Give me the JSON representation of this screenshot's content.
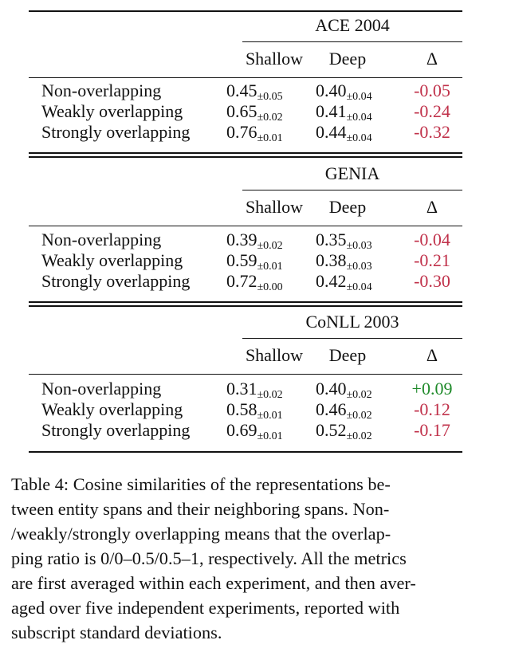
{
  "sections": [
    {
      "title": "ACE 2004",
      "columns": [
        "Shallow",
        "Deep",
        "Δ"
      ],
      "rows": [
        {
          "label": "Non-overlapping",
          "shallow": "0.45",
          "shallow_sd": "±0.05",
          "deep": "0.40",
          "deep_sd": "±0.04",
          "delta": "-0.05",
          "sign": "neg"
        },
        {
          "label": "Weakly overlapping",
          "shallow": "0.65",
          "shallow_sd": "±0.02",
          "deep": "0.41",
          "deep_sd": "±0.04",
          "delta": "-0.24",
          "sign": "neg"
        },
        {
          "label": "Strongly overlapping",
          "shallow": "0.76",
          "shallow_sd": "±0.01",
          "deep": "0.44",
          "deep_sd": "±0.04",
          "delta": "-0.32",
          "sign": "neg"
        }
      ]
    },
    {
      "title": "GENIA",
      "columns": [
        "Shallow",
        "Deep",
        "Δ"
      ],
      "rows": [
        {
          "label": "Non-overlapping",
          "shallow": "0.39",
          "shallow_sd": "±0.02",
          "deep": "0.35",
          "deep_sd": "±0.03",
          "delta": "-0.04",
          "sign": "neg"
        },
        {
          "label": "Weakly overlapping",
          "shallow": "0.59",
          "shallow_sd": "±0.01",
          "deep": "0.38",
          "deep_sd": "±0.03",
          "delta": "-0.21",
          "sign": "neg"
        },
        {
          "label": "Strongly overlapping",
          "shallow": "0.72",
          "shallow_sd": "±0.00",
          "deep": "0.42",
          "deep_sd": "±0.04",
          "delta": "-0.30",
          "sign": "neg"
        }
      ]
    },
    {
      "title": "CoNLL 2003",
      "columns": [
        "Shallow",
        "Deep",
        "Δ"
      ],
      "rows": [
        {
          "label": "Non-overlapping",
          "shallow": "0.31",
          "shallow_sd": "±0.02",
          "deep": "0.40",
          "deep_sd": "±0.02",
          "delta": "+0.09",
          "sign": "pos"
        },
        {
          "label": "Weakly overlapping",
          "shallow": "0.58",
          "shallow_sd": "±0.01",
          "deep": "0.46",
          "deep_sd": "±0.02",
          "delta": "-0.12",
          "sign": "neg"
        },
        {
          "label": "Strongly overlapping",
          "shallow": "0.69",
          "shallow_sd": "±0.01",
          "deep": "0.52",
          "deep_sd": "±0.02",
          "delta": "-0.17",
          "sign": "neg"
        }
      ]
    }
  ],
  "colors": {
    "negative": "#c0314a",
    "positive": "#1f8a2a"
  },
  "caption": "Table 4: Cosine similarities of the representations be-\ntween entity spans and their neighboring spans. Non-\n/weakly/strongly overlapping means that the overlap-\nping ratio is 0/0–0.5/0.5–1, respectively. All the metrics\nare first averaged within each experiment, and then aver-\naged over five independent experiments, reported with\nsubscript standard deviations."
}
